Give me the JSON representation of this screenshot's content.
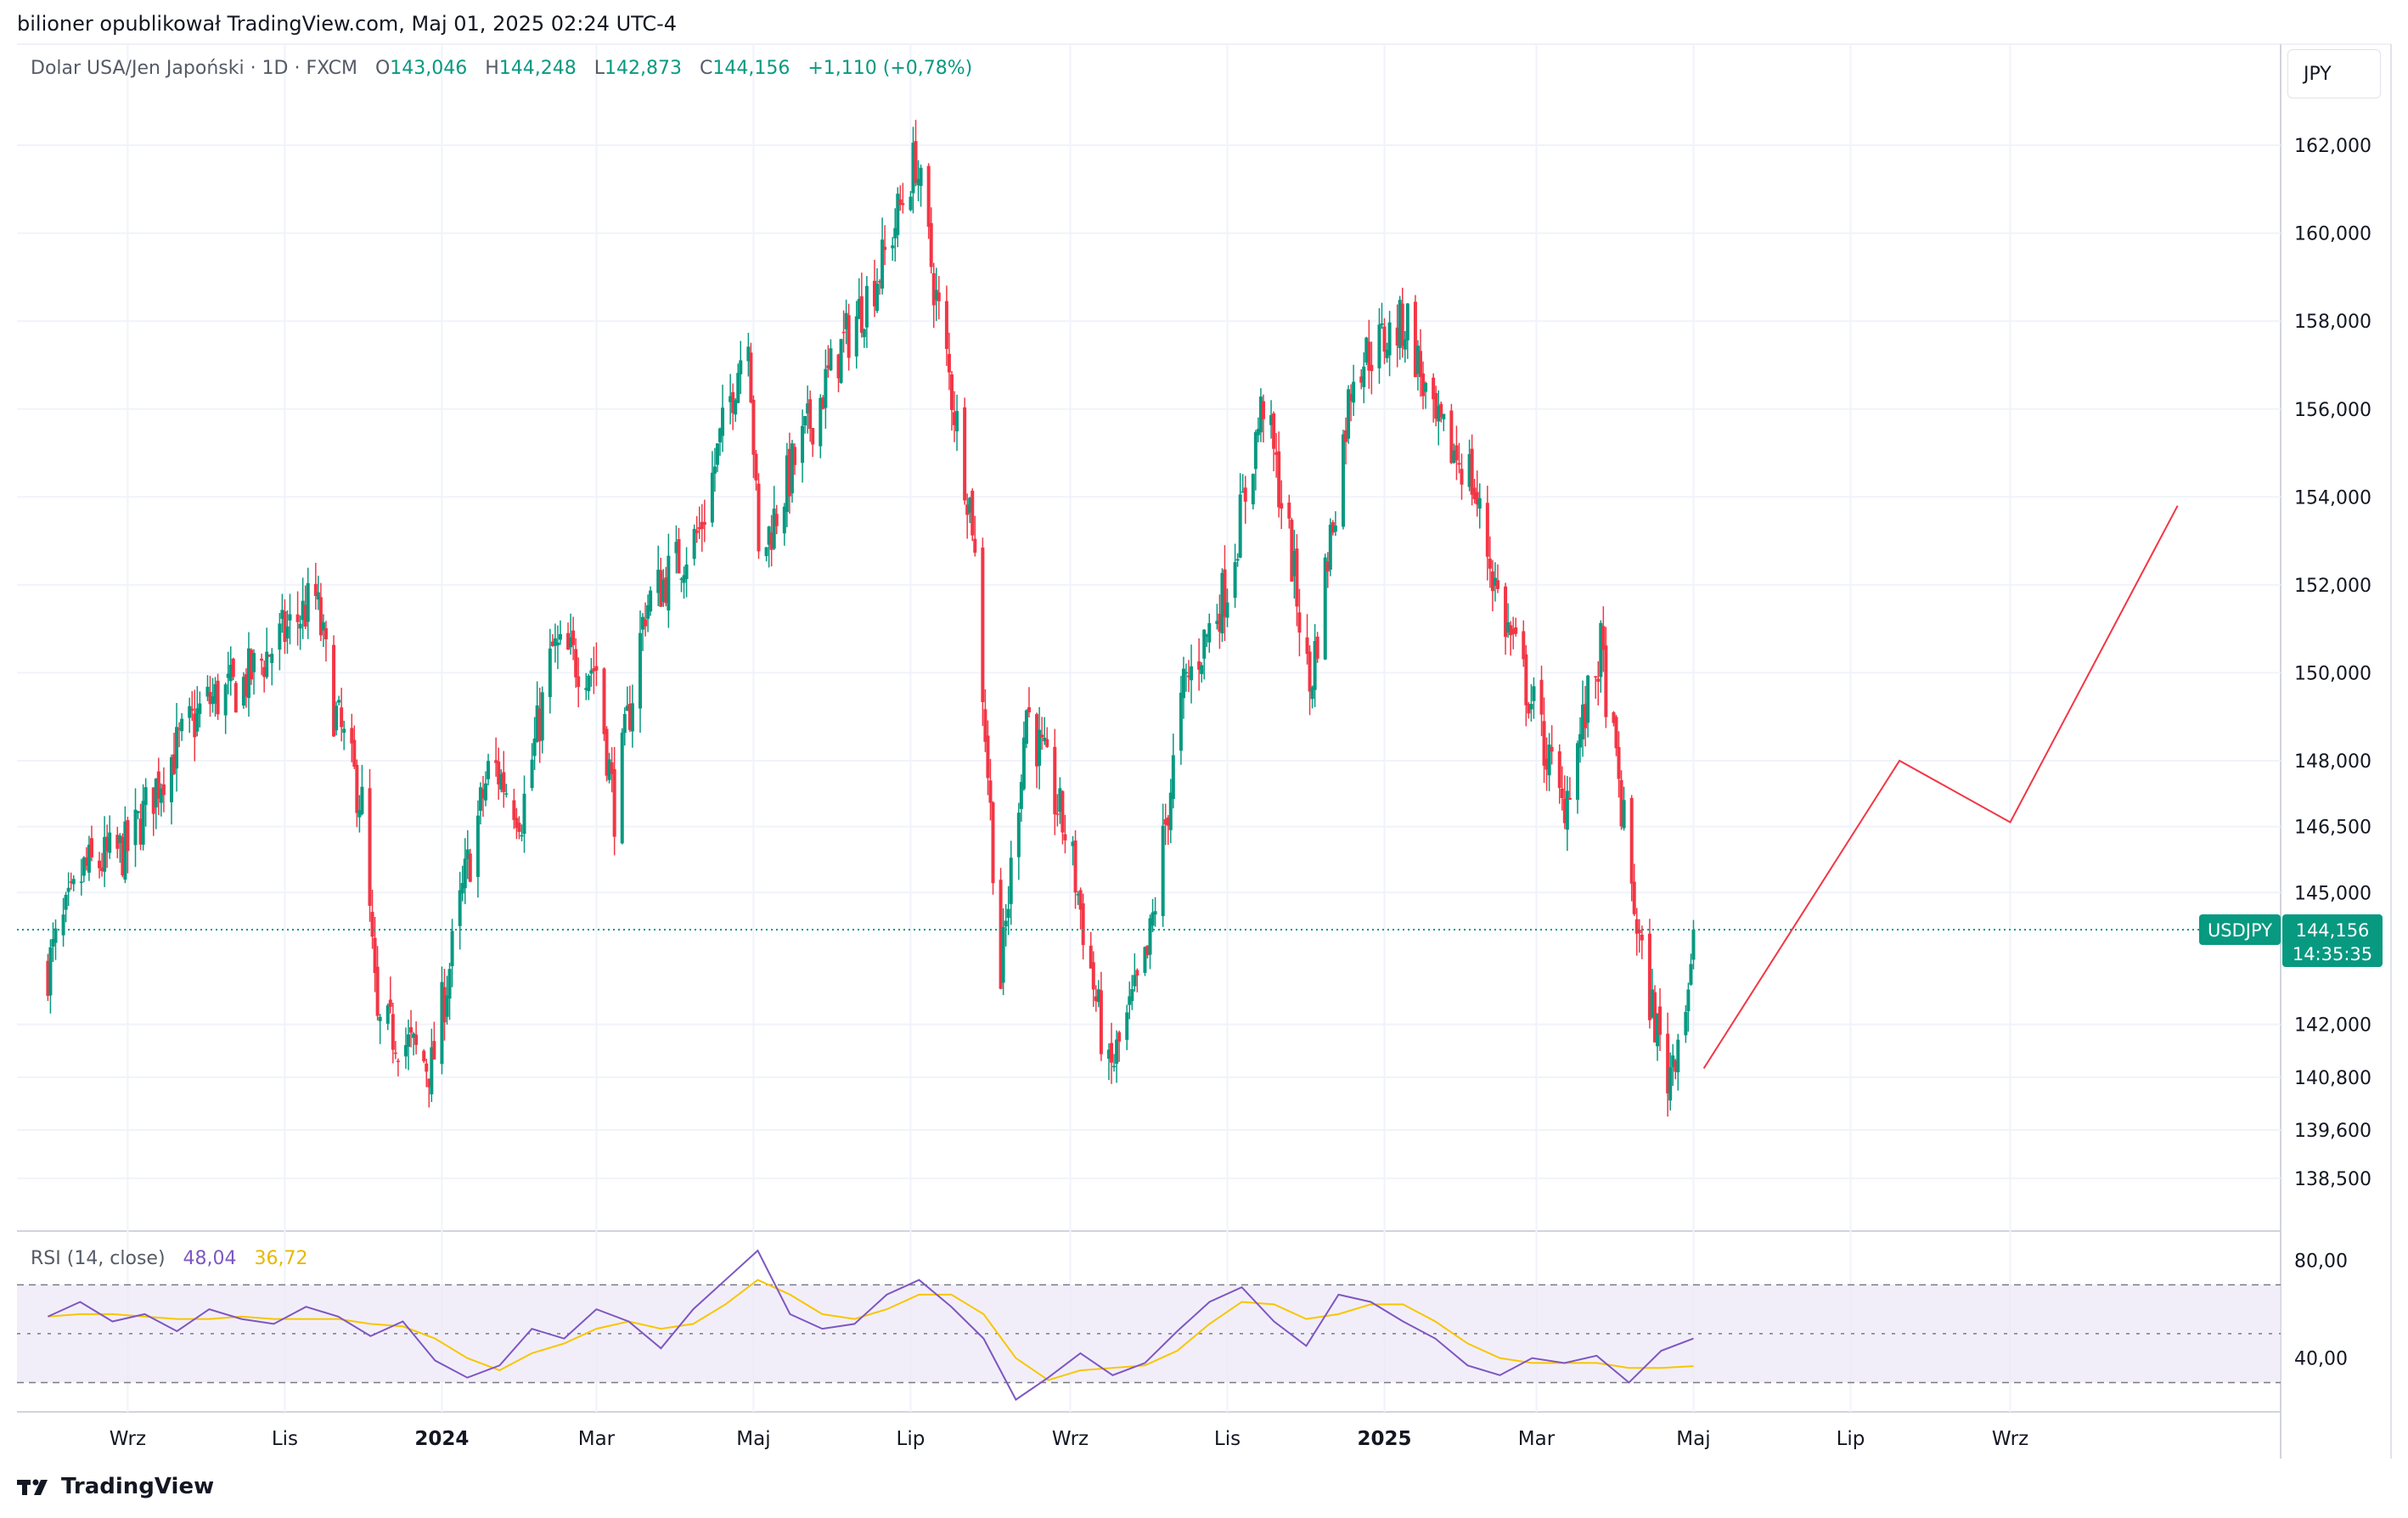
{
  "header": {
    "publisher_line": "bilioner opublikował TradingView.com, Maj 01, 2025 02:24 UTC-4"
  },
  "legend": {
    "symbol_desc": "Dolar USA/Jen Japoński · 1D · FXCM",
    "o_label": "O",
    "o_value": "143,046",
    "h_label": "H",
    "h_value": "144,248",
    "l_label": "L",
    "l_value": "142,873",
    "c_label": "C",
    "c_value": "144,156",
    "change": "+1,110 (+0,78%)"
  },
  "currency_button": "JPY",
  "price_tag": {
    "symbol": "USDJPY",
    "price": "144,156",
    "countdown": "14:35:35"
  },
  "rsi_legend": {
    "label": "RSI (14, close)",
    "rsi_value": "48,04",
    "ma_value": "36,72"
  },
  "footer": {
    "brand": "TradingView"
  },
  "colors": {
    "up": "#089981",
    "down": "#f23645",
    "rsi": "#7e57c2",
    "rsi_ma": "#f7c600",
    "projection": "#f23645",
    "band": "#ede7f6"
  },
  "chart_data": [
    {
      "type": "candlestick",
      "title": "",
      "y_axis_ticks": [
        "162,000",
        "160,000",
        "158,000",
        "156,000",
        "154,000",
        "152,000",
        "150,000",
        "148,000",
        "146,500",
        "145,000",
        "142,000",
        "140,800",
        "139,600",
        "138,500"
      ],
      "x_axis_ticks": [
        "Wrz",
        "Lis",
        "2024",
        "Mar",
        "Maj",
        "Lip",
        "Wrz",
        "Lis",
        "2025",
        "Mar",
        "Maj",
        "Lip",
        "Wrz"
      ],
      "ylim": [
        137.3,
        164.3
      ],
      "current_price": 144.156,
      "price_path": [
        {
          "date": "2023-08-01",
          "close": 143.3
        },
        {
          "date": "2023-08-15",
          "close": 145.5
        },
        {
          "date": "2023-09-01",
          "close": 146.0
        },
        {
          "date": "2023-09-15",
          "close": 147.8
        },
        {
          "date": "2023-10-01",
          "close": 149.3
        },
        {
          "date": "2023-10-15",
          "close": 149.7
        },
        {
          "date": "2023-11-01",
          "close": 150.9
        },
        {
          "date": "2023-11-13",
          "close": 151.7
        },
        {
          "date": "2023-11-20",
          "close": 149.2
        },
        {
          "date": "2023-12-01",
          "close": 147.0
        },
        {
          "date": "2023-12-07",
          "close": 141.9
        },
        {
          "date": "2023-12-14",
          "close": 141.8
        },
        {
          "date": "2023-12-28",
          "close": 141.0
        },
        {
          "date": "2024-01-10",
          "close": 145.3
        },
        {
          "date": "2024-01-20",
          "close": 148.0
        },
        {
          "date": "2024-02-01",
          "close": 146.8
        },
        {
          "date": "2024-02-13",
          "close": 150.5
        },
        {
          "date": "2024-03-01",
          "close": 150.1
        },
        {
          "date": "2024-03-08",
          "close": 146.9
        },
        {
          "date": "2024-03-20",
          "close": 151.5
        },
        {
          "date": "2024-04-10",
          "close": 153.2
        },
        {
          "date": "2024-04-29",
          "close": 158.0
        },
        {
          "date": "2024-05-03",
          "close": 152.5
        },
        {
          "date": "2024-05-15",
          "close": 154.5
        },
        {
          "date": "2024-06-01",
          "close": 157.0
        },
        {
          "date": "2024-06-20",
          "close": 159.3
        },
        {
          "date": "2024-07-03",
          "close": 161.7
        },
        {
          "date": "2024-07-11",
          "close": 158.5
        },
        {
          "date": "2024-07-25",
          "close": 153.5
        },
        {
          "date": "2024-08-05",
          "close": 143.0
        },
        {
          "date": "2024-08-15",
          "close": 149.2
        },
        {
          "date": "2024-09-01",
          "close": 146.0
        },
        {
          "date": "2024-09-16",
          "close": 140.8
        },
        {
          "date": "2024-10-01",
          "close": 143.5
        },
        {
          "date": "2024-10-15",
          "close": 149.6
        },
        {
          "date": "2024-11-01",
          "close": 152.0
        },
        {
          "date": "2024-11-15",
          "close": 156.2
        },
        {
          "date": "2024-11-25",
          "close": 153.0
        },
        {
          "date": "2024-12-03",
          "close": 149.6
        },
        {
          "date": "2024-12-20",
          "close": 157.0
        },
        {
          "date": "2025-01-10",
          "close": 158.0
        },
        {
          "date": "2025-01-20",
          "close": 155.6
        },
        {
          "date": "2025-02-03",
          "close": 154.6
        },
        {
          "date": "2025-02-15",
          "close": 151.5
        },
        {
          "date": "2025-03-01",
          "close": 149.0
        },
        {
          "date": "2025-03-11",
          "close": 146.9
        },
        {
          "date": "2025-03-26",
          "close": 150.5
        },
        {
          "date": "2025-04-04",
          "close": 146.5
        },
        {
          "date": "2025-04-11",
          "close": 143.4
        },
        {
          "date": "2025-04-21",
          "close": 140.8
        },
        {
          "date": "2025-04-30",
          "close": 143.1
        },
        {
          "date": "2025-05-01",
          "close": 144.156
        }
      ],
      "projection_line": [
        {
          "date": "2025-05-05",
          "price": 141.0
        },
        {
          "date": "2025-07-20",
          "price": 148.0
        },
        {
          "date": "2025-09-01",
          "price": 146.6
        },
        {
          "date": "2025-11-05",
          "price": 153.8
        }
      ]
    },
    {
      "type": "line",
      "title": "",
      "y_axis_ticks": [
        "80,00",
        "40,00"
      ],
      "ylim": [
        18,
        92
      ],
      "bands": {
        "upper": 70,
        "middle": 50,
        "lower": 30
      },
      "series": [
        {
          "name": "RSI (14, close)",
          "values": [
            57,
            63,
            55,
            58,
            51,
            60,
            56,
            54,
            61,
            57,
            49,
            55,
            39,
            32,
            37,
            52,
            48,
            60,
            55,
            44,
            60,
            72,
            84,
            58,
            52,
            54,
            66,
            72,
            61,
            48,
            23,
            32,
            42,
            33,
            38,
            51,
            63,
            69,
            55,
            45,
            66,
            63,
            55,
            48,
            37,
            33,
            40,
            38,
            41,
            30,
            43,
            48.04
          ]
        },
        {
          "name": "MA",
          "values": [
            57,
            58,
            58,
            57,
            56,
            56,
            57,
            56,
            56,
            56,
            54,
            53,
            48,
            40,
            35,
            42,
            46,
            52,
            55,
            52,
            54,
            62,
            72,
            66,
            58,
            56,
            60,
            66,
            66,
            58,
            40,
            31,
            35,
            36,
            37,
            43,
            54,
            63,
            62,
            56,
            58,
            62,
            62,
            55,
            46,
            40,
            38,
            38,
            38,
            36,
            36,
            36.72
          ]
        }
      ]
    }
  ]
}
